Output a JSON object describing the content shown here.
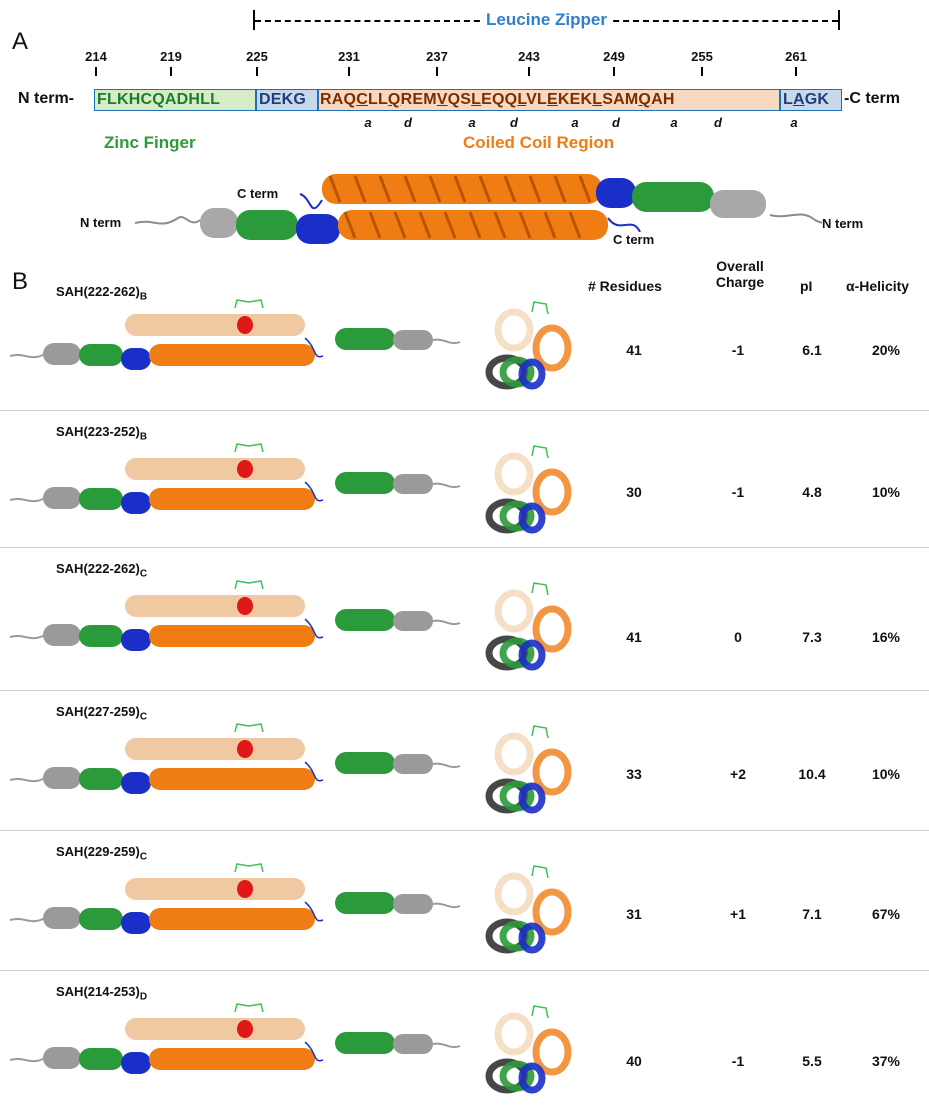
{
  "panel_a": {
    "label": "A",
    "leucine_zipper_label": "Leucine Zipper",
    "positions": [
      "214",
      "219",
      "225",
      "231",
      "237",
      "243",
      "249",
      "255",
      "261"
    ],
    "n_term": "N term-",
    "c_term": "-C term",
    "segments": [
      {
        "text": "FLKHCQADHLL",
        "type": "zinc"
      },
      {
        "text": "DEKG",
        "type": "blue"
      },
      {
        "text": "RAQCLLQREMVQSLEQQLVLEKEKLSAMQAH",
        "type": "coil"
      },
      {
        "text": "LAGK",
        "type": "blue"
      }
    ],
    "heptad_marks": [
      "a",
      "d",
      "a",
      "d",
      "a",
      "d",
      "a",
      "d",
      "a"
    ],
    "zinc_finger_label": "Zinc Finger",
    "coiled_coil_label": "Coiled Coil Region",
    "structure_labels": {
      "n_term_left": "N term",
      "c_term_top": "C term",
      "c_term_bottom": "C term",
      "n_term_right": "N term"
    }
  },
  "panel_b": {
    "label": "B",
    "headers": {
      "residues": "# Residues",
      "charge_line1": "Overall",
      "charge_line2": "Charge",
      "pi": "pI",
      "helicity": "α-Helicity"
    },
    "rows": [
      {
        "name": "SAH(222-262)",
        "sub": "B",
        "residues": "41",
        "charge": "-1",
        "pi": "6.1",
        "helicity": "20%"
      },
      {
        "name": "SAH(223-252)",
        "sub": "B",
        "residues": "30",
        "charge": "-1",
        "pi": "4.8",
        "helicity": "10%"
      },
      {
        "name": "SAH(222-262)",
        "sub": "C",
        "residues": "41",
        "charge": "0",
        "pi": "7.3",
        "helicity": "16%"
      },
      {
        "name": "SAH(227-259)",
        "sub": "C",
        "residues": "33",
        "charge": "+2",
        "pi": "10.4",
        "helicity": "10%"
      },
      {
        "name": "SAH(229-259)",
        "sub": "C",
        "residues": "31",
        "charge": "+1",
        "pi": "7.1",
        "helicity": "67%"
      },
      {
        "name": "SAH(214-253)",
        "sub": "D",
        "residues": "40",
        "charge": "-1",
        "pi": "5.5",
        "helicity": "37%"
      }
    ]
  },
  "colors": {
    "zinc": "#2b9a3a",
    "blue": "#1a2fc8",
    "coil": "#f07c14",
    "coil_light": "#f0c9a2",
    "gray": "#9a9a9a",
    "staple": "#3fbf5a",
    "red": "#e01818",
    "zipper": "#2f7fd0"
  }
}
